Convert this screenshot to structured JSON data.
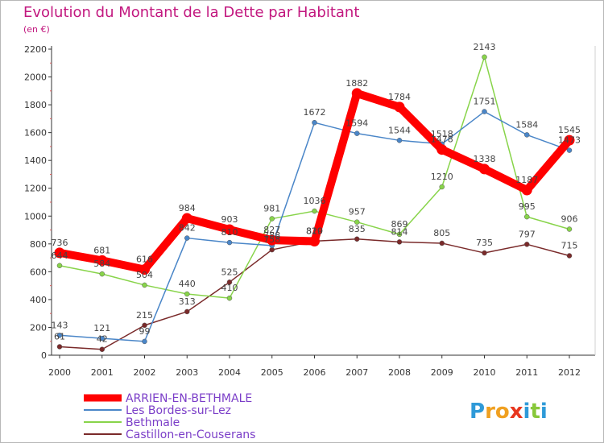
{
  "chart_data": {
    "type": "line",
    "title": "Evolution du Montant de la Dette par Habitant",
    "subtitle": "(en €)",
    "ylim": [
      0,
      2200
    ],
    "yticks": [
      0,
      200,
      400,
      600,
      800,
      1000,
      1200,
      1400,
      1600,
      1800,
      2000,
      2200
    ],
    "x": [
      "2000",
      "2001",
      "2002",
      "2003",
      "2004",
      "2005",
      "2006",
      "2007",
      "2008",
      "2009",
      "2010",
      "2011",
      "2012"
    ],
    "grid": false,
    "legend_position": "bottom-left",
    "series": [
      {
        "name": "ARRIEN-EN-BETHMALE",
        "color": "#ff0000",
        "values": [
          736,
          681,
          616,
          984,
          903,
          827,
          819,
          1882,
          1784,
          1478,
          1338,
          1187,
          1545
        ],
        "labels": [
          "736",
          "681",
          "616",
          "984",
          "903",
          "827",
          "819",
          "1882",
          "1784",
          "1478",
          "1338",
          "1187",
          "1545"
        ]
      },
      {
        "name": "Les Bordes-sur-Lez",
        "color": "#4a86c8",
        "values": [
          143,
          121,
          99,
          842,
          810,
          788,
          1672,
          1594,
          1544,
          1518,
          1751,
          1584,
          1473
        ],
        "labels": [
          "143",
          "121",
          "99",
          "842",
          "810",
          "788",
          "1672",
          "1594",
          "1544",
          "1518",
          "1751",
          "1584",
          "1473"
        ]
      },
      {
        "name": "Bethmale",
        "color": "#88d44a",
        "values": [
          644,
          584,
          504,
          440,
          410,
          981,
          1036,
          957,
          869,
          1210,
          2143,
          995,
          906
        ],
        "labels": [
          "644",
          "584",
          "504",
          "440",
          "410",
          "981",
          "1036",
          "957",
          "869",
          "1210",
          "2143",
          "995",
          "906"
        ]
      },
      {
        "name": "Castillon-en-Couserans",
        "color": "#7a2a2a",
        "values": [
          61,
          42,
          215,
          313,
          525,
          758,
          820,
          835,
          814,
          805,
          735,
          797,
          715
        ],
        "labels": [
          "61",
          "42",
          "215",
          "313",
          "525",
          "758",
          "820",
          "835",
          "814",
          "805",
          "735",
          "797",
          "715"
        ]
      }
    ]
  },
  "logo": {
    "letters": [
      "P",
      "r",
      "o",
      "x",
      "i",
      "t",
      "i"
    ],
    "colors": [
      "#2f9ad8",
      "#f0a020",
      "#f0a020",
      "#e8361e",
      "#2f9ad8",
      "#88c83a",
      "#2f9ad8"
    ]
  }
}
